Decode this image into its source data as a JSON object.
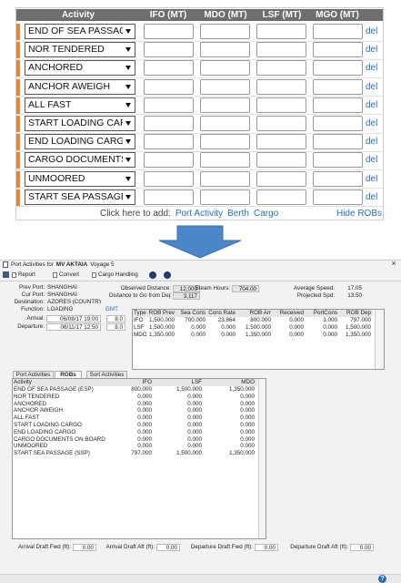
{
  "top": {
    "headers": [
      "Activity",
      "IFO (MT)",
      "MDO (MT)",
      "LSF (MT)",
      "MGO (MT)"
    ],
    "activities": [
      "END OF SEA PASSAGE",
      "NOR TENDERED",
      "ANCHORED",
      "ANCHOR AWEIGH",
      "ALL FAST",
      "START LOADING CARGO",
      "END LOADING CARGO",
      "CARGO DOCUMENTS O",
      "UNMOORED",
      "START SEA PASSAGE (S"
    ],
    "delete_label": "del",
    "add_prompt": "Click here to add:",
    "add_links": [
      "Port Activity",
      "Berth",
      "Cargo"
    ],
    "hide_label": "Hide ROBs"
  },
  "window": {
    "title": "Port Activities for",
    "vessel": "MV AKTAIA",
    "voyage": "Voyage 5",
    "close": "×",
    "toolbar": [
      "Report",
      "Convert",
      "Cargo Handling"
    ],
    "fields": [
      {
        "label": "Prev Port:",
        "value": "SHANGHAI"
      },
      {
        "label": "Cur Port:",
        "value": "SHANGHAI"
      },
      {
        "label": "Destination:",
        "value": "AZORES (COUNTRY)"
      },
      {
        "label": "Function:",
        "value": "LOADING"
      },
      {
        "label": "Arrival:",
        "value": "06/08/17 19:00"
      },
      {
        "label": "Departure:",
        "value": "06/11/17 12:50"
      }
    ],
    "gmt_label": "GMT",
    "gmt": [
      "8.0",
      "8.0"
    ],
    "stats": [
      {
        "label": "Observed Distance:",
        "value": "12,000"
      },
      {
        "label": "Distance to Go from Dep:",
        "value": "3,117"
      },
      {
        "label": "Steam Hours:",
        "value": "704.00"
      },
      {
        "label": "Average Speed:",
        "value": "17.05"
      },
      {
        "label": "Projected Spd:",
        "value": "13.50"
      }
    ],
    "rob_table": {
      "headers": [
        "Type",
        "ROB Prev",
        "Sea Cons",
        "Cons Rate",
        "ROB Arr",
        "Received",
        "PortCons",
        "ROB Dep"
      ],
      "rows": [
        [
          "IFO",
          "1,500.000",
          "700.000",
          "23.864",
          "800.000",
          "0.000",
          "3.000",
          "797.000"
        ],
        [
          "LSF",
          "1,500.000",
          "0.000",
          "0.000",
          "1,500.000",
          "0.000",
          "0.000",
          "1,500.000"
        ],
        [
          "MDO",
          "1,350.000",
          "0.000",
          "0.000",
          "1,350.000",
          "0.000",
          "0.000",
          "1,350.000"
        ]
      ]
    },
    "tabs": [
      "Port Activities",
      "ROBs",
      "Sort Activities"
    ],
    "grid": {
      "headers": [
        "Activity",
        "IFO",
        "LSF",
        "MDO"
      ],
      "rows": [
        [
          "END OF SEA PASSAGE (ESP)",
          "800.000",
          "1,500.000",
          "1,350.000"
        ],
        [
          "NOR TENDERED",
          "0.000",
          "0.000",
          "0.000"
        ],
        [
          "ANCHORED",
          "0.000",
          "0.000",
          "0.000"
        ],
        [
          "ANCHOR AWEIGH",
          "0.000",
          "0.000",
          "0.000"
        ],
        [
          "ALL FAST",
          "0.000",
          "0.000",
          "0.000"
        ],
        [
          "START LOADING CARGO",
          "0.000",
          "0.000",
          "0.000"
        ],
        [
          "END LOADING CARGO",
          "0.000",
          "0.000",
          "0.000"
        ],
        [
          "CARGO DOCUMENTS ON BOARD",
          "0.000",
          "0.000",
          "0.000"
        ],
        [
          "UNMOORED",
          "0.000",
          "0.000",
          "0.000"
        ],
        [
          "START SEA PASSAGE (SSP)",
          "797.000",
          "1,500.000",
          "1,350.000"
        ]
      ]
    },
    "drafts": [
      {
        "label": "Arrival Draft Fwd (ft):",
        "value": "0.00"
      },
      {
        "label": "Arrival Draft Aft (ft):",
        "value": "0.00"
      },
      {
        "label": "Departure Draft Fwd (ft):",
        "value": "0.00"
      },
      {
        "label": "Departure Draft Aft (ft):",
        "value": "0.00"
      }
    ],
    "help": "?"
  }
}
